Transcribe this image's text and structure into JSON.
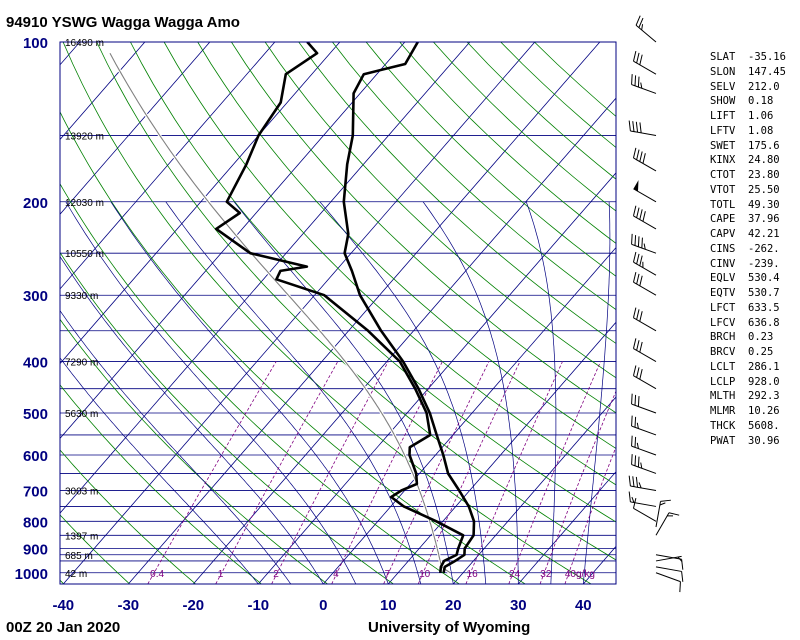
{
  "header": {
    "title": "94910 YSWG Wagga Wagga Amo"
  },
  "footer": {
    "time": "00Z 20 Jan 2020",
    "source": "University of Wyoming"
  },
  "indices": [
    {
      "k": "SLAT",
      "v": "-35.16"
    },
    {
      "k": "SLON",
      "v": "147.45"
    },
    {
      "k": "SELV",
      "v": "212.0"
    },
    {
      "k": "SHOW",
      "v": "0.18"
    },
    {
      "k": "LIFT",
      "v": "1.06"
    },
    {
      "k": "LFTV",
      "v": "1.08"
    },
    {
      "k": "SWET",
      "v": "175.6"
    },
    {
      "k": "KINX",
      "v": "24.80"
    },
    {
      "k": "CTOT",
      "v": "23.80"
    },
    {
      "k": "VTOT",
      "v": "25.50"
    },
    {
      "k": "TOTL",
      "v": "49.30"
    },
    {
      "k": "CAPE",
      "v": "37.96"
    },
    {
      "k": "CAPV",
      "v": "42.21"
    },
    {
      "k": "CINS",
      "v": "-262."
    },
    {
      "k": "CINV",
      "v": "-239."
    },
    {
      "k": "EQLV",
      "v": "530.4"
    },
    {
      "k": "EQTV",
      "v": "530.7"
    },
    {
      "k": "LFCT",
      "v": "633.5"
    },
    {
      "k": "LFCV",
      "v": "636.8"
    },
    {
      "k": "BRCH",
      "v": "0.23"
    },
    {
      "k": "BRCV",
      "v": "0.25"
    },
    {
      "k": "LCLT",
      "v": "286.1"
    },
    {
      "k": "LCLP",
      "v": "928.0"
    },
    {
      "k": "MLTH",
      "v": "292.3"
    },
    {
      "k": "MLMR",
      "v": "10.26"
    },
    {
      "k": "THCK",
      "v": "5608."
    },
    {
      "k": "PWAT",
      "v": "30.96"
    }
  ],
  "colors": {
    "frame": "#000080",
    "isobar": "#000080",
    "isotherm": "#000080",
    "dry_adiabat": "#008000",
    "moist_adiabat": "#000080",
    "mixing_ratio": "#800080",
    "profile": "#000000",
    "parcel": "#808080"
  },
  "chart_data": {
    "type": "skew-t",
    "xlabel": "",
    "ylabel": "",
    "x_ticks": [
      -40,
      -30,
      -20,
      -10,
      0,
      10,
      20,
      30,
      40
    ],
    "xlim": [
      -40,
      45
    ],
    "p_ticks": [
      100,
      200,
      300,
      400,
      500,
      600,
      700,
      800,
      900,
      1000
    ],
    "plim": [
      1050,
      100
    ],
    "height_labels": [
      {
        "p": 100,
        "label": "16490 m"
      },
      {
        "p": 150,
        "label": "13920 m"
      },
      {
        "p": 200,
        "label": "12030 m"
      },
      {
        "p": 250,
        "label": "10550 m"
      },
      {
        "p": 300,
        "label": "9330 m"
      },
      {
        "p": 400,
        "label": "7290 m"
      },
      {
        "p": 500,
        "label": "5630 m"
      },
      {
        "p": 700,
        "label": "3003 m"
      },
      {
        "p": 850,
        "label": "1397 m"
      },
      {
        "p": 925,
        "label": "685 m"
      },
      {
        "p": 1000,
        "label": "42 m"
      }
    ],
    "mixing_ratio_labels": [
      "0.4",
      "1",
      "2",
      "4",
      "7",
      "10",
      "16",
      "24",
      "32",
      "40g/kg"
    ],
    "mixing_ratio_values": [
      0.4,
      1,
      2,
      4,
      7,
      10,
      16,
      24,
      32,
      40
    ],
    "temperature": [
      {
        "p": 1000,
        "t": 17.0
      },
      {
        "p": 975,
        "t": 16.4
      },
      {
        "p": 950,
        "t": 17.2
      },
      {
        "p": 925,
        "t": 17.8
      },
      {
        "p": 900,
        "t": 17.0
      },
      {
        "p": 850,
        "t": 16.6
      },
      {
        "p": 800,
        "t": 14.8
      },
      {
        "p": 750,
        "t": 12.0
      },
      {
        "p": 700,
        "t": 8.4
      },
      {
        "p": 650,
        "t": 4.4
      },
      {
        "p": 600,
        "t": 1.2
      },
      {
        "p": 550,
        "t": -2.5
      },
      {
        "p": 500,
        "t": -6.5
      },
      {
        "p": 450,
        "t": -11.5
      },
      {
        "p": 400,
        "t": -17.5
      },
      {
        "p": 350,
        "t": -25.0
      },
      {
        "p": 300,
        "t": -33.0
      },
      {
        "p": 270,
        "t": -37.5
      },
      {
        "p": 250,
        "t": -41.0
      },
      {
        "p": 230,
        "t": -43.0
      },
      {
        "p": 200,
        "t": -48.0
      },
      {
        "p": 170,
        "t": -52.5
      },
      {
        "p": 150,
        "t": -55.5
      },
      {
        "p": 125,
        "t": -61.0
      },
      {
        "p": 115,
        "t": -62.0
      },
      {
        "p": 110,
        "t": -57.0
      },
      {
        "p": 100,
        "t": -58.0
      }
    ],
    "dewpoint": [
      {
        "p": 1000,
        "t": 16.5
      },
      {
        "p": 975,
        "t": 15.8
      },
      {
        "p": 950,
        "t": 15.5
      },
      {
        "p": 925,
        "t": 16.6
      },
      {
        "p": 900,
        "t": 16.0
      },
      {
        "p": 850,
        "t": 15.0
      },
      {
        "p": 800,
        "t": 9.0
      },
      {
        "p": 750,
        "t": 2.0
      },
      {
        "p": 720,
        "t": -1.2
      },
      {
        "p": 700,
        "t": -0.5
      },
      {
        "p": 680,
        "t": 1.0
      },
      {
        "p": 650,
        "t": -0.5
      },
      {
        "p": 600,
        "t": -4.0
      },
      {
        "p": 580,
        "t": -5.0
      },
      {
        "p": 550,
        "t": -3.5
      },
      {
        "p": 500,
        "t": -7.0
      },
      {
        "p": 450,
        "t": -12.0
      },
      {
        "p": 400,
        "t": -18.0
      },
      {
        "p": 350,
        "t": -27.0
      },
      {
        "p": 300,
        "t": -38.5
      },
      {
        "p": 280,
        "t": -48.0
      },
      {
        "p": 270,
        "t": -48.5
      },
      {
        "p": 265,
        "t": -45.0
      },
      {
        "p": 250,
        "t": -55.5
      },
      {
        "p": 225,
        "t": -64.0
      },
      {
        "p": 210,
        "t": -62.5
      },
      {
        "p": 200,
        "t": -66.0
      },
      {
        "p": 170,
        "t": -68.0
      },
      {
        "p": 150,
        "t": -70.0
      },
      {
        "p": 130,
        "t": -71.0
      },
      {
        "p": 115,
        "t": -74.0
      },
      {
        "p": 105,
        "t": -72.0
      },
      {
        "p": 100,
        "t": -75.0
      }
    ],
    "parcel_source": {
      "p": 1000,
      "t": 18.0,
      "td": 16.5
    },
    "wind_barbs": [
      {
        "p": 1000,
        "dir": 110,
        "spd": 10
      },
      {
        "p": 975,
        "dir": 100,
        "spd": 10
      },
      {
        "p": 950,
        "dir": 80,
        "spd": 5
      },
      {
        "p": 925,
        "dir": 100,
        "spd": 10
      },
      {
        "p": 850,
        "dir": 30,
        "spd": 15
      },
      {
        "p": 820,
        "dir": 10,
        "spd": 15
      },
      {
        "p": 800,
        "dir": 300,
        "spd": 10
      },
      {
        "p": 750,
        "dir": 280,
        "spd": 15
      },
      {
        "p": 700,
        "dir": 280,
        "spd": 35
      },
      {
        "p": 650,
        "dir": 290,
        "spd": 35
      },
      {
        "p": 600,
        "dir": 290,
        "spd": 25
      },
      {
        "p": 550,
        "dir": 290,
        "spd": 25
      },
      {
        "p": 500,
        "dir": 290,
        "spd": 30
      },
      {
        "p": 450,
        "dir": 300,
        "spd": 30
      },
      {
        "p": 400,
        "dir": 300,
        "spd": 30
      },
      {
        "p": 350,
        "dir": 300,
        "spd": 30
      },
      {
        "p": 300,
        "dir": 300,
        "spd": 30
      },
      {
        "p": 275,
        "dir": 300,
        "spd": 35
      },
      {
        "p": 250,
        "dir": 290,
        "spd": 45
      },
      {
        "p": 225,
        "dir": 300,
        "spd": 40
      },
      {
        "p": 200,
        "dir": 300,
        "spd": 50
      },
      {
        "p": 175,
        "dir": 300,
        "spd": 40
      },
      {
        "p": 150,
        "dir": 280,
        "spd": 40
      },
      {
        "p": 125,
        "dir": 290,
        "spd": 35
      },
      {
        "p": 115,
        "dir": 300,
        "spd": 30
      },
      {
        "p": 100,
        "dir": 310,
        "spd": 25
      }
    ]
  }
}
